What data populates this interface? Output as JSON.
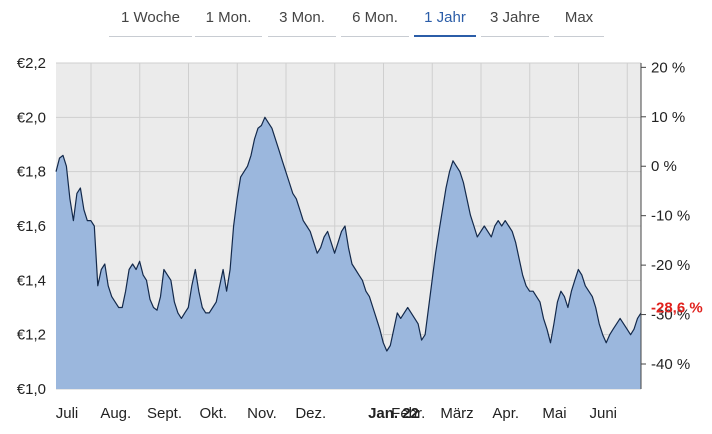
{
  "tabs": [
    {
      "label": "1 Woche",
      "active": false
    },
    {
      "label": "1 Mon.",
      "active": false
    },
    {
      "label": "3 Mon.",
      "active": false
    },
    {
      "label": "6 Mon.",
      "active": false
    },
    {
      "label": "1 Jahr",
      "active": true
    },
    {
      "label": "3 Jahre",
      "active": false
    },
    {
      "label": "Max",
      "active": false
    }
  ],
  "chart_data": {
    "type": "area",
    "ylim": [
      1.0,
      2.2
    ],
    "y_ticks": [
      "€1,0",
      "€1,2",
      "€1,4",
      "€1,6",
      "€1,8",
      "€2,0",
      "€2,2"
    ],
    "right_ticks": [
      "20 %",
      "10 %",
      "0 %",
      "-10 %",
      "-20 %",
      "-30 %",
      "-40 %"
    ],
    "right_highlight": {
      "label": "-28,6 %"
    },
    "x_ticks": [
      "Juli",
      "Aug.",
      "Sept.",
      "Okt.",
      "Nov.",
      "Dez.",
      "Jan. 22",
      "Febr.",
      "März",
      "Apr.",
      "Mai",
      "Juni"
    ],
    "x_bold": "Jan. 22",
    "grid": true,
    "colors": {
      "fill": "#9bb7dd",
      "line": "#13294b",
      "highlight": "#e0201c"
    },
    "values": [
      1.8,
      1.85,
      1.86,
      1.82,
      1.7,
      1.62,
      1.72,
      1.74,
      1.66,
      1.62,
      1.62,
      1.6,
      1.38,
      1.44,
      1.46,
      1.38,
      1.34,
      1.32,
      1.3,
      1.3,
      1.36,
      1.44,
      1.46,
      1.44,
      1.47,
      1.42,
      1.4,
      1.33,
      1.3,
      1.29,
      1.34,
      1.44,
      1.42,
      1.4,
      1.32,
      1.28,
      1.26,
      1.28,
      1.3,
      1.38,
      1.44,
      1.36,
      1.3,
      1.28,
      1.28,
      1.3,
      1.32,
      1.38,
      1.44,
      1.36,
      1.44,
      1.6,
      1.7,
      1.78,
      1.8,
      1.82,
      1.86,
      1.92,
      1.96,
      1.97,
      2.0,
      1.98,
      1.96,
      1.92,
      1.88,
      1.84,
      1.8,
      1.76,
      1.72,
      1.7,
      1.66,
      1.62,
      1.6,
      1.58,
      1.54,
      1.5,
      1.52,
      1.56,
      1.58,
      1.54,
      1.5,
      1.54,
      1.58,
      1.6,
      1.52,
      1.46,
      1.44,
      1.42,
      1.4,
      1.36,
      1.34,
      1.3,
      1.26,
      1.22,
      1.17,
      1.14,
      1.16,
      1.22,
      1.28,
      1.26,
      1.28,
      1.3,
      1.28,
      1.26,
      1.24,
      1.18,
      1.2,
      1.3,
      1.4,
      1.5,
      1.58,
      1.66,
      1.74,
      1.8,
      1.84,
      1.82,
      1.8,
      1.76,
      1.7,
      1.64,
      1.6,
      1.56,
      1.58,
      1.6,
      1.58,
      1.56,
      1.6,
      1.62,
      1.6,
      1.62,
      1.6,
      1.58,
      1.54,
      1.48,
      1.42,
      1.38,
      1.36,
      1.36,
      1.34,
      1.32,
      1.26,
      1.22,
      1.17,
      1.24,
      1.32,
      1.36,
      1.34,
      1.3,
      1.36,
      1.4,
      1.44,
      1.42,
      1.38,
      1.36,
      1.34,
      1.3,
      1.24,
      1.2,
      1.17,
      1.2,
      1.22,
      1.24,
      1.26,
      1.24,
      1.22,
      1.2,
      1.22,
      1.26,
      1.28
    ]
  }
}
